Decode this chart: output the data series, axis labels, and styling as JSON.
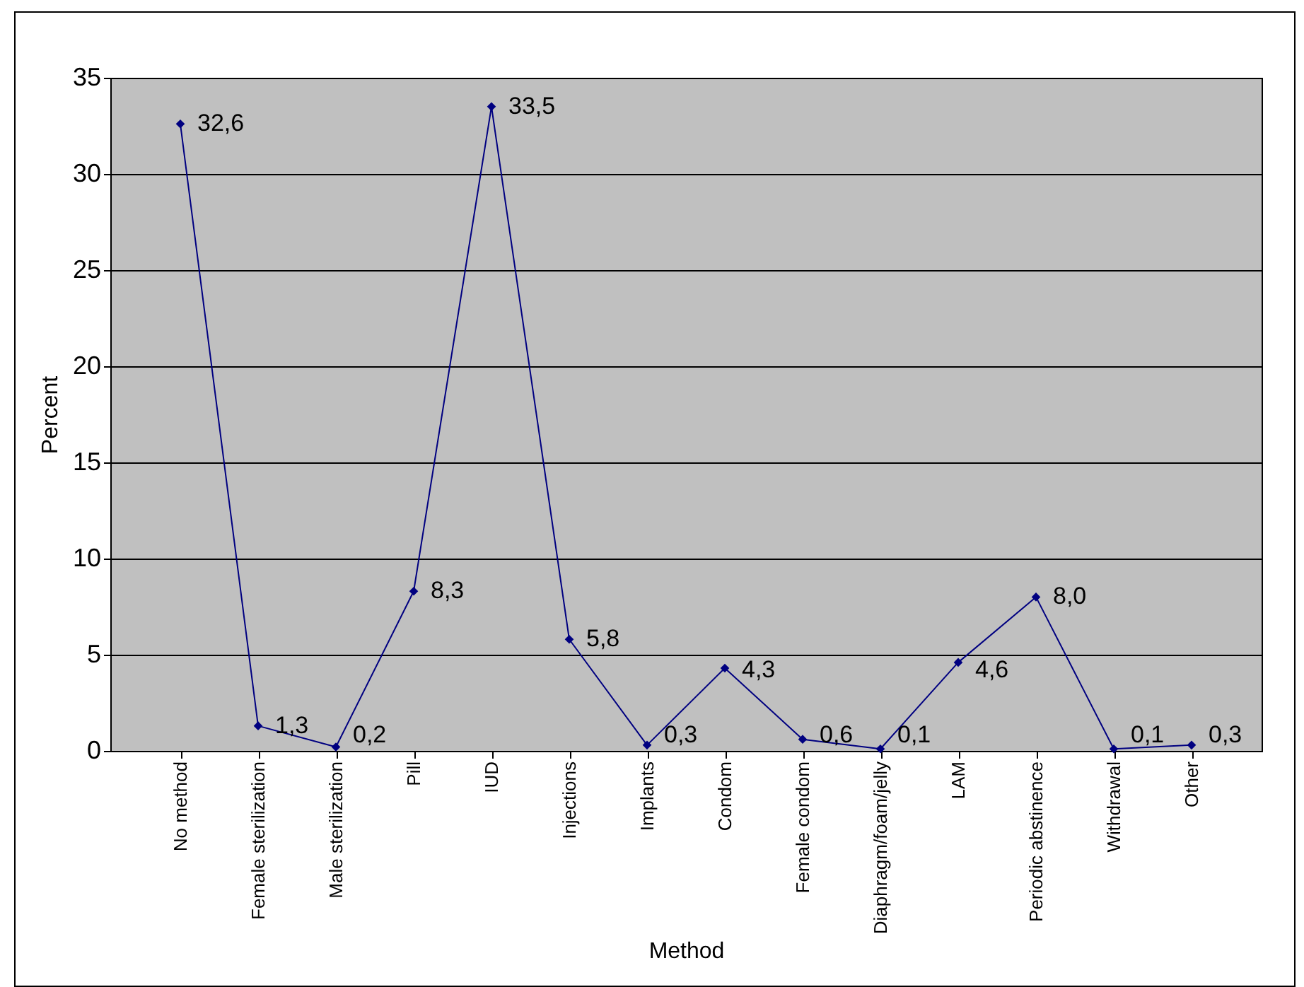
{
  "chart_data": {
    "type": "line",
    "xlabel": "Method",
    "ylabel": "Percent",
    "categories": [
      "No method",
      "Female sterilization",
      "Male sterilization",
      "Pill",
      "IUD",
      "Injections",
      "Implants",
      "Condom",
      "Female condom",
      "Diaphragm/foam/jelly",
      "LAM",
      "Periodic abstinence",
      "Withdrawal",
      "Other"
    ],
    "series": [
      {
        "color": "#000080",
        "values": [
          32.6,
          1.3,
          0.2,
          8.3,
          33.5,
          5.8,
          0.3,
          4.3,
          0.6,
          0.1,
          4.6,
          8.0,
          0.1,
          0.3
        ],
        "value_labels": [
          "32,6",
          "1,3",
          "0,2",
          "8,3",
          "33,5",
          "5,8",
          "0,3",
          "4,3",
          "0,6",
          "0,1",
          "4,6",
          "8,0",
          "0,1",
          "0,3"
        ]
      }
    ],
    "ylim": [
      0,
      35
    ],
    "yticks": [
      0,
      5,
      10,
      15,
      20,
      25,
      30,
      35
    ],
    "grid": "y",
    "legend": false,
    "marker": "diamond",
    "line_style": "solid"
  }
}
